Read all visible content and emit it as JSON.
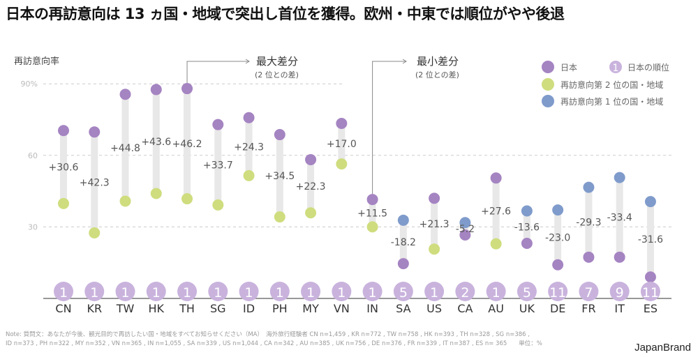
{
  "title": "日本の再訪意向は 13 ヵ国・地域で突出し首位を獲得。欧州・中東では順位がやや後退",
  "note_line1": "Note: 質問文：あなたが今後、観光目的で再訪したい国・地域をすべてお知らせください（MA）　海外旅行経験者 CN n=1,459 , KR n=772 , TW n=758 , HK n=393 , TH n=328 , SG n=386 ,",
  "note_line2": "ID n=373 , PH n=322 , MY n=352 , VN n=365 , IN n=1,055 , SA n=339 , US n=1,044 , CA n=342 , AU n=385 , UK n=756 , DE n=376 , FR n=339 , IT n=387 , ES n= 365　　単位：%",
  "brand": "JapanBrand",
  "chart_data": {
    "type": "dumbbell",
    "ylabel": "再訪意向率",
    "ylim": [
      0,
      90
    ],
    "yticks": [
      "90%",
      "60",
      "30"
    ],
    "ytick_values": [
      90,
      60,
      30
    ],
    "grid": true,
    "legend_position": "top-right",
    "legend": {
      "japan": "日本",
      "rank": "日本の順位",
      "rank_sample": "1",
      "second": "再訪意向第 2 位の国・地域",
      "first": "再訪意向第 1 位の国・地域"
    },
    "colors": {
      "japan": "#a584c2",
      "second": "#cfdd7e",
      "first": "#7f9bcb",
      "rank": "#c9b3dd",
      "bar": "#e8e8e8"
    },
    "annotations": [
      {
        "target": "TH",
        "label": "最大差分",
        "sub": "(2 位との差)"
      },
      {
        "target": "IN",
        "label": "最小差分",
        "sub": "(2 位との差)"
      }
    ],
    "categories": [
      "CN",
      "KR",
      "TW",
      "HK",
      "TH",
      "SG",
      "ID",
      "PH",
      "MY",
      "VN",
      "IN",
      "SA",
      "US",
      "CA",
      "AU",
      "UK",
      "DE",
      "FR",
      "IT",
      "ES"
    ],
    "japan": [
      70.4,
      69.8,
      85.6,
      87.6,
      88.0,
      72.9,
      75.8,
      68.7,
      58.2,
      73.4,
      41.5,
      14.6,
      42.0,
      26.6,
      50.5,
      23.1,
      14.1,
      17.3,
      17.3,
      9.0
    ],
    "comparison": [
      39.8,
      27.5,
      40.8,
      44.0,
      41.8,
      39.2,
      51.5,
      34.2,
      35.9,
      56.4,
      30.0,
      32.8,
      20.7,
      31.8,
      22.9,
      36.7,
      37.1,
      46.6,
      50.7,
      40.6
    ],
    "comparison_type": [
      "second",
      "second",
      "second",
      "second",
      "second",
      "second",
      "second",
      "second",
      "second",
      "second",
      "second",
      "first",
      "second",
      "first",
      "second",
      "first",
      "first",
      "first",
      "first",
      "first"
    ],
    "diff_labels": [
      "+30.6",
      "+42.3",
      "+44.8",
      "+43.6",
      "+46.2",
      "+33.7",
      "+24.3",
      "+34.5",
      "+22.3",
      "+17.0",
      "+11.5",
      "-18.2",
      "+21.3",
      "-5.2",
      "+27.6",
      "-13.6",
      "-23.0",
      "-29.3",
      "-33.4",
      "-31.6"
    ],
    "japan_rank": [
      "1",
      "1",
      "1",
      "1",
      "1",
      "1",
      "1",
      "1",
      "1",
      "1",
      "1",
      "5",
      "1",
      "2",
      "1",
      "5",
      "11",
      "7",
      "9",
      "11"
    ]
  }
}
